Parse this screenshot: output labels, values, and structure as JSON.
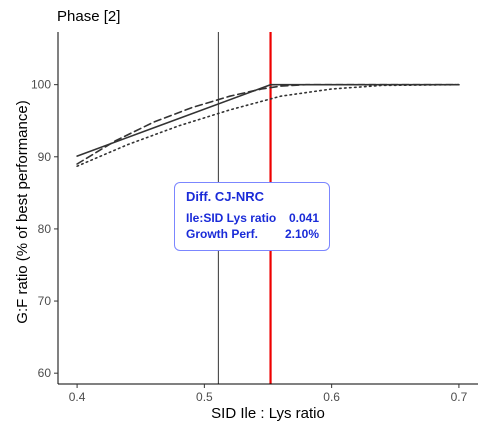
{
  "chart_data": {
    "type": "line",
    "title": "Phase [2]",
    "xlabel": "SID Ile : Lys ratio",
    "ylabel": "G:F ratio (% of best performance)",
    "xlim": [
      0.385,
      0.715
    ],
    "ylim": [
      58.5,
      107.3
    ],
    "x_ticks": [
      0.4,
      0.5,
      0.6,
      0.7
    ],
    "x_tick_labels": [
      "0.4",
      "0.5",
      "0.6",
      "0.7"
    ],
    "y_ticks": [
      60,
      70,
      80,
      90,
      100
    ],
    "y_tick_labels": [
      "60",
      "70",
      "80",
      "90",
      "100"
    ],
    "grid": false,
    "series": [
      {
        "style": "solid",
        "color": "#333333",
        "x": [
          0.4,
          0.552,
          0.7
        ],
        "y": [
          90.1,
          100.0,
          100.0
        ]
      },
      {
        "style": "dashed",
        "color": "#333333",
        "x": [
          0.4,
          0.43,
          0.46,
          0.49,
          0.52,
          0.545,
          0.56,
          0.58,
          0.7
        ],
        "y": [
          89.0,
          92.2,
          94.8,
          96.8,
          98.4,
          99.4,
          99.8,
          100.0,
          100.0
        ]
      },
      {
        "style": "dotted",
        "color": "#333333",
        "x": [
          0.4,
          0.44,
          0.48,
          0.52,
          0.56,
          0.6,
          0.64,
          0.7
        ],
        "y": [
          88.7,
          91.7,
          94.3,
          96.5,
          98.4,
          99.4,
          99.9,
          100.0
        ]
      }
    ],
    "vlines": [
      {
        "x": 0.511,
        "color": "#333333"
      },
      {
        "x": 0.552,
        "color": "#ee0000"
      }
    ]
  },
  "annotation": {
    "title": "Diff. CJ-NRC",
    "rows": [
      {
        "label": "Ile:SID Lys ratio",
        "value": "0.041"
      },
      {
        "label": "Growth Perf.",
        "value": "2.10%"
      }
    ]
  }
}
